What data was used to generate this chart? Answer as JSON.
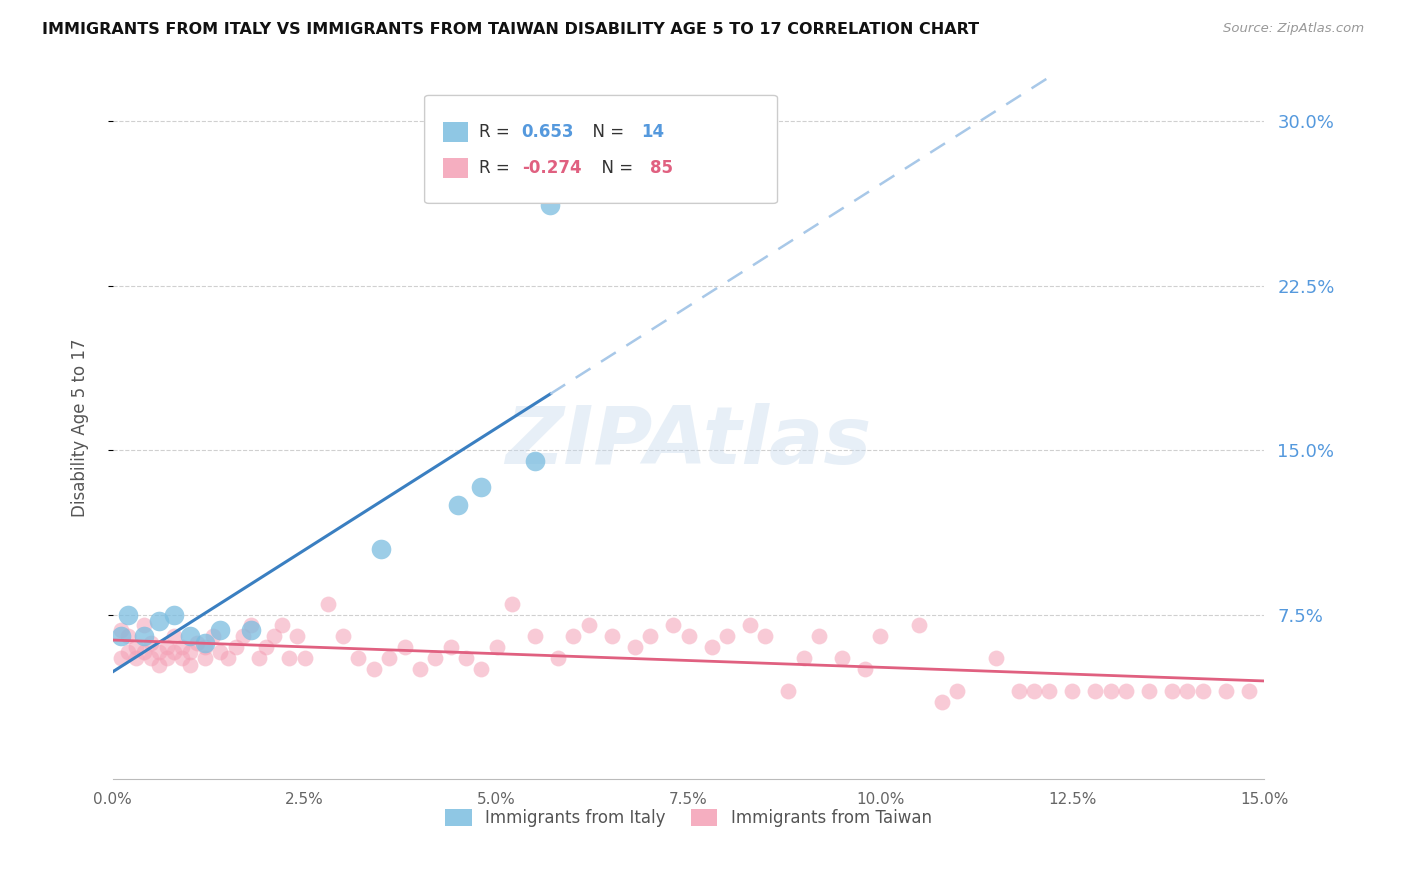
{
  "title": "IMMIGRANTS FROM ITALY VS IMMIGRANTS FROM TAIWAN DISABILITY AGE 5 TO 17 CORRELATION CHART",
  "source": "Source: ZipAtlas.com",
  "ylabel": "Disability Age 5 to 17",
  "right_ytick_labels": [
    "7.5%",
    "15.0%",
    "22.5%",
    "30.0%"
  ],
  "right_ytick_values": [
    0.075,
    0.15,
    0.225,
    0.3
  ],
  "xlim": [
    0.0,
    0.15
  ],
  "ylim": [
    0.0,
    0.32
  ],
  "italy_color": "#7bbde0",
  "taiwan_color": "#f4a0b5",
  "italy_trend_color": "#3a7fc1",
  "italy_dash_color": "#a8c8e8",
  "taiwan_trend_color": "#e06080",
  "watermark": "ZIPAtlas",
  "italy_points_x": [
    0.001,
    0.002,
    0.004,
    0.006,
    0.008,
    0.01,
    0.012,
    0.014,
    0.018,
    0.035,
    0.045,
    0.048,
    0.055,
    0.057
  ],
  "italy_points_y": [
    0.065,
    0.075,
    0.065,
    0.072,
    0.075,
    0.065,
    0.062,
    0.068,
    0.068,
    0.105,
    0.125,
    0.133,
    0.145,
    0.262
  ],
  "taiwan_points_x": [
    0.001,
    0.001,
    0.002,
    0.002,
    0.003,
    0.003,
    0.004,
    0.004,
    0.005,
    0.005,
    0.006,
    0.006,
    0.007,
    0.007,
    0.008,
    0.008,
    0.009,
    0.009,
    0.01,
    0.01,
    0.011,
    0.012,
    0.012,
    0.013,
    0.014,
    0.015,
    0.016,
    0.017,
    0.018,
    0.019,
    0.02,
    0.021,
    0.022,
    0.023,
    0.024,
    0.025,
    0.028,
    0.03,
    0.032,
    0.034,
    0.036,
    0.038,
    0.04,
    0.042,
    0.044,
    0.046,
    0.048,
    0.05,
    0.052,
    0.055,
    0.058,
    0.06,
    0.062,
    0.065,
    0.068,
    0.07,
    0.073,
    0.075,
    0.078,
    0.08,
    0.083,
    0.085,
    0.088,
    0.09,
    0.092,
    0.095,
    0.098,
    0.1,
    0.105,
    0.108,
    0.11,
    0.115,
    0.118,
    0.12,
    0.122,
    0.125,
    0.128,
    0.13,
    0.132,
    0.135,
    0.138,
    0.14,
    0.142,
    0.145,
    0.148
  ],
  "taiwan_points_y": [
    0.068,
    0.055,
    0.065,
    0.058,
    0.06,
    0.055,
    0.07,
    0.058,
    0.062,
    0.055,
    0.058,
    0.052,
    0.06,
    0.055,
    0.065,
    0.058,
    0.055,
    0.06,
    0.058,
    0.052,
    0.062,
    0.055,
    0.06,
    0.065,
    0.058,
    0.055,
    0.06,
    0.065,
    0.07,
    0.055,
    0.06,
    0.065,
    0.07,
    0.055,
    0.065,
    0.055,
    0.08,
    0.065,
    0.055,
    0.05,
    0.055,
    0.06,
    0.05,
    0.055,
    0.06,
    0.055,
    0.05,
    0.06,
    0.08,
    0.065,
    0.055,
    0.065,
    0.07,
    0.065,
    0.06,
    0.065,
    0.07,
    0.065,
    0.06,
    0.065,
    0.07,
    0.065,
    0.04,
    0.055,
    0.065,
    0.055,
    0.05,
    0.065,
    0.07,
    0.035,
    0.04,
    0.055,
    0.04,
    0.04,
    0.04,
    0.04,
    0.04,
    0.04,
    0.04,
    0.04,
    0.04,
    0.04,
    0.04,
    0.04,
    0.04
  ]
}
